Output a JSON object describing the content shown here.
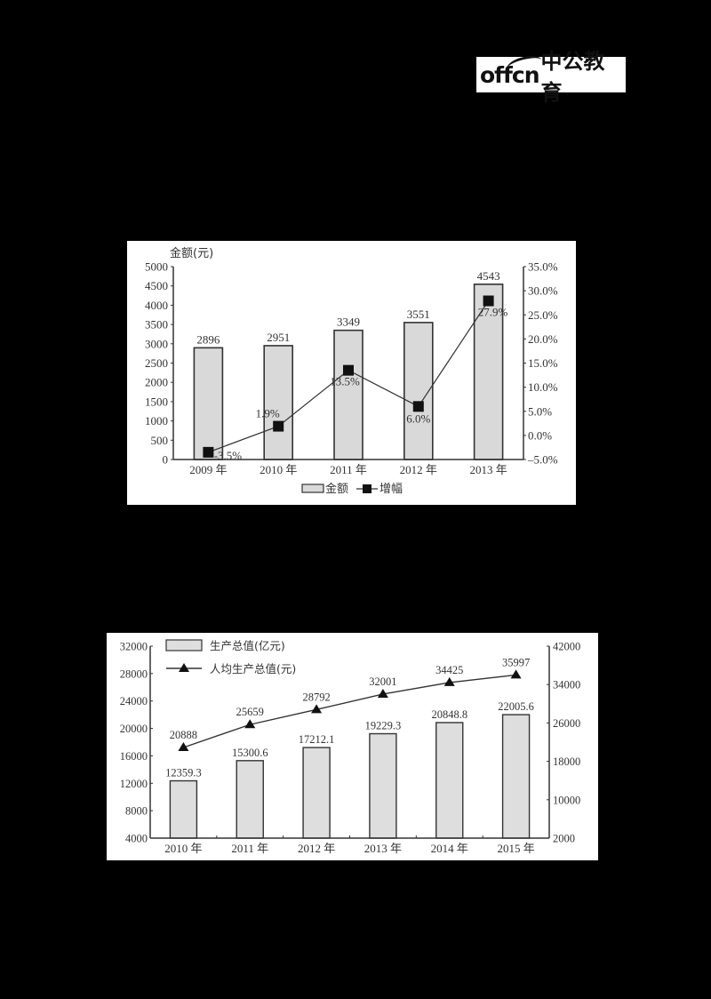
{
  "logo": {
    "latin": "offcn",
    "cn": "中公教育"
  },
  "chart_data": [
    {
      "type": "bar+line",
      "title": "",
      "ylabel": "金额(元)",
      "y2label": "",
      "categories": [
        "2009 年",
        "2010 年",
        "2011 年",
        "2012 年",
        "2013 年"
      ],
      "ylim": [
        0,
        5000
      ],
      "yticks": [
        0,
        500,
        1000,
        1500,
        2000,
        2500,
        3000,
        3500,
        4000,
        4500,
        5000
      ],
      "y2lim": [
        -5.0,
        35.0
      ],
      "y2ticks": [
        "-5.0%",
        "0.0%",
        "5.0%",
        "10.0%",
        "15.0%",
        "20.0%",
        "25.0%",
        "30.0%",
        "35.0%"
      ],
      "series": [
        {
          "name": "金额",
          "type": "bar",
          "axis": "left",
          "values": [
            2896,
            2951,
            3349,
            3551,
            4543
          ],
          "labels": [
            "2896",
            "2951",
            "3349",
            "3551",
            "4543"
          ]
        },
        {
          "name": "增幅",
          "type": "line",
          "marker": "square",
          "axis": "right",
          "values": [
            -3.5,
            1.9,
            13.5,
            6.0,
            27.9
          ],
          "labels": [
            "-3.5%",
            "1.9%",
            "13.5%",
            "6.0%",
            "27.9%"
          ]
        }
      ],
      "legend": [
        "金额",
        "增幅"
      ],
      "legend_position": "bottom",
      "grid": false
    },
    {
      "type": "bar+line",
      "title": "",
      "ylabel": "",
      "categories": [
        "2010 年",
        "2011 年",
        "2012 年",
        "2013 年",
        "2014 年",
        "2015 年"
      ],
      "ylim": [
        4000,
        32000
      ],
      "yticks": [
        4000,
        8000,
        12000,
        16000,
        20000,
        24000,
        28000,
        32000
      ],
      "y2lim": [
        2000,
        42000
      ],
      "y2ticks": [
        2000,
        10000,
        18000,
        26000,
        34000,
        42000
      ],
      "series": [
        {
          "name": "生产总值(亿元)",
          "type": "bar",
          "axis": "left",
          "values": [
            12359.3,
            15300.6,
            17212.1,
            19229.3,
            20848.8,
            22005.6
          ],
          "labels": [
            "12359.3",
            "15300.6",
            "17212.1",
            "19229.3",
            "20848.8",
            "22005.6"
          ]
        },
        {
          "name": "人均生产总值(元)",
          "type": "line",
          "marker": "triangle",
          "axis": "right",
          "values": [
            20888,
            25659,
            28792,
            32001,
            34425,
            35997
          ],
          "labels": [
            "20888",
            "25659",
            "28792",
            "32001",
            "34425",
            "35997"
          ]
        }
      ],
      "legend": [
        "生产总值(亿元)",
        "人均生产总值(元)"
      ],
      "legend_position": "top-left",
      "grid": false
    }
  ],
  "colors": {
    "bar_fill": "#d9d9d9",
    "bar_stroke": "#333333",
    "line": "#333333",
    "marker": "#111111",
    "page_bg": "#000000",
    "panel_bg": "#ffffff"
  }
}
